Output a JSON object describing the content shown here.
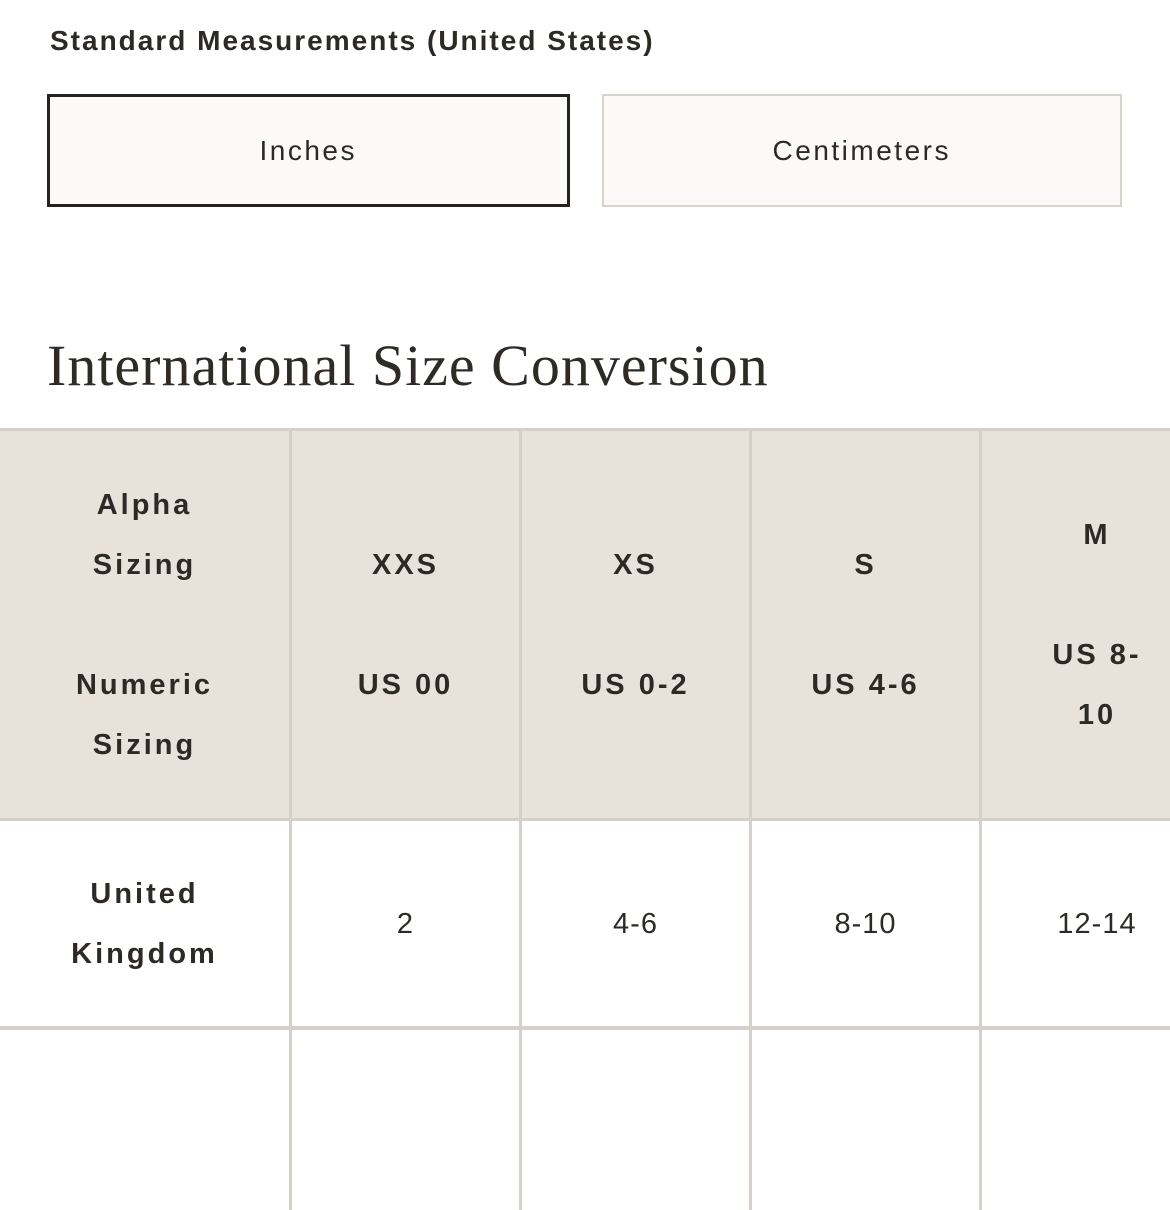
{
  "standard": {
    "title": "Standard Measurements (United States)",
    "buttons": [
      {
        "label": "Inches",
        "selected": true
      },
      {
        "label": "Centimeters",
        "selected": false
      }
    ]
  },
  "conversion": {
    "title": "International Size Conversion",
    "table": {
      "columns": [
        {
          "top": "Alpha Sizing",
          "bottom": "Numeric Sizing"
        },
        {
          "top": "XXS",
          "bottom": "US 00"
        },
        {
          "top": "XS",
          "bottom": "US 0-2"
        },
        {
          "top": "S",
          "bottom": "US 4-6"
        },
        {
          "top": "M",
          "bottom": "US 8-10"
        }
      ],
      "rows": [
        {
          "label": "United Kingdom",
          "values": [
            "2",
            "4-6",
            "8-10",
            "12-14"
          ]
        }
      ]
    }
  },
  "colors": {
    "text": "#2d2a26",
    "header_bg": "#e9e2da",
    "grid_border": "#d5d0c9",
    "selected_border": "#262220",
    "unselected_border": "#d8d3cc",
    "button_bg": "#fbfaf8"
  }
}
